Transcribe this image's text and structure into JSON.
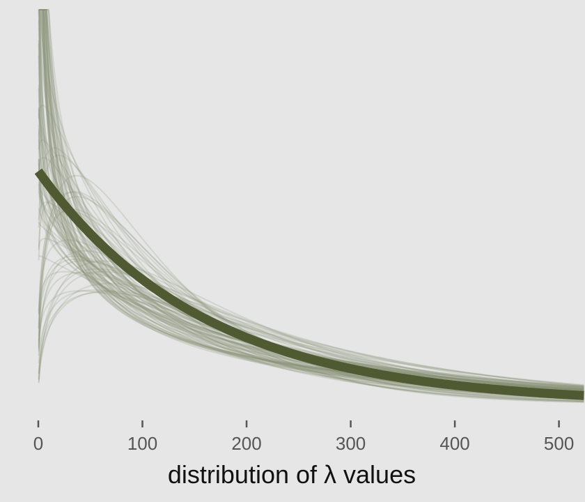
{
  "chart_data": {
    "type": "line",
    "title": "",
    "xlabel": "distribution of λ values",
    "ylabel": "",
    "xlim": [
      0,
      525
    ],
    "ylim": [
      0,
      0.0105
    ],
    "x_ticks": [
      "0",
      "100",
      "200",
      "300",
      "400",
      "500"
    ],
    "x_tick_values": [
      0,
      100,
      200,
      300,
      400,
      500
    ],
    "y_axis_shown": false,
    "grid": false,
    "colors": {
      "background": "#e6e6e6",
      "mean_curve": "#4f5a32",
      "sample_curves": "#8a9177",
      "tick_label": "#555555",
      "axis_title": "#111111"
    },
    "series": [
      {
        "role": "prior-predictive-mean",
        "distribution": "exponential",
        "rate": 0.00625,
        "x": [
          0,
          25,
          50,
          75,
          100,
          150,
          200,
          250,
          300,
          350,
          400,
          450,
          500,
          525
        ],
        "y": [
          0.00625,
          0.00534,
          0.00457,
          0.0039,
          0.00334,
          0.00244,
          0.00179,
          0.00131,
          0.00096,
          0.0007,
          0.00051,
          0.00037,
          0.00027,
          0.00024
        ]
      }
    ],
    "sample_curves": {
      "count": 100,
      "distribution": "gamma",
      "note_values_are_parameter_draws": true,
      "draws": []
    }
  }
}
